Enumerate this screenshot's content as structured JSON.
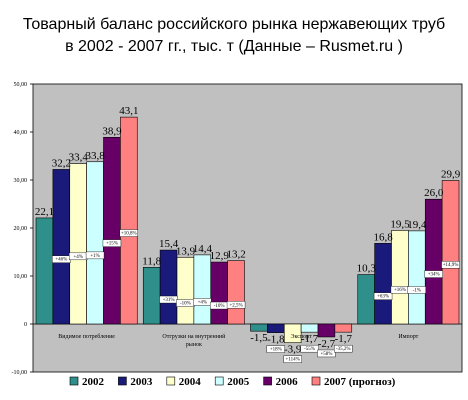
{
  "chart_data": {
    "type": "bar",
    "title_line1": "Товарный баланс российского рынка нержавеющих труб",
    "title_line2": "в 2002 - 2007 гг., тыс. т (Данные – Rusmet.ru )",
    "ylim": [
      -10,
      50
    ],
    "yticks": [
      "-10,00",
      "0",
      "10,00",
      "20,00",
      "30,00",
      "40,00",
      "50,00"
    ],
    "ytick_values": [
      -10,
      0,
      10,
      20,
      30,
      40,
      50
    ],
    "grid": false,
    "legend_position": "bottom",
    "categories": [
      "Видимое потребление",
      "Отгрузки на внутренний рынок",
      "Экспорт",
      "Импорт"
    ],
    "series": [
      {
        "name": "2002",
        "color": "#2f8f8a",
        "values": [
          22.1,
          11.8,
          -1.5,
          10.3
        ],
        "labels": [
          "22,1",
          "11,8",
          "-1,5",
          "10,3"
        ],
        "pct": [
          "",
          "",
          "",
          ""
        ]
      },
      {
        "name": "2003",
        "color": "#1a1a7a",
        "values": [
          32.2,
          15.4,
          -1.8,
          16.8
        ],
        "labels": [
          "32,2",
          "15,4",
          "-1,8",
          "16,8"
        ],
        "pct": [
          "+46%",
          "+31%",
          "+18%",
          "+63%"
        ]
      },
      {
        "name": "2004",
        "color": "#ffffcc",
        "values": [
          33.4,
          13.9,
          -3.9,
          19.5
        ],
        "labels": [
          "33,4",
          "13,9",
          "-3,9",
          "19,5"
        ],
        "pct": [
          "+4%",
          "-10%",
          "+114%",
          "+16%"
        ]
      },
      {
        "name": "2005",
        "color": "#ccffff",
        "values": [
          33.8,
          14.4,
          -1.7,
          19.4
        ],
        "labels": [
          "33,8",
          "14,4",
          "-1,7",
          "19,4"
        ],
        "pct": [
          "+1%",
          "+4%",
          "-55%",
          "-1%"
        ]
      },
      {
        "name": "2006",
        "color": "#660066",
        "values": [
          38.9,
          12.9,
          -2.7,
          26.0
        ],
        "labels": [
          "38,9",
          "12,9",
          "-2,7",
          "26,0"
        ],
        "pct": [
          "+15%",
          "-10%",
          "+58%",
          "+34%"
        ]
      },
      {
        "name": "2007 (прогноз)",
        "color": "#ff8080",
        "values": [
          43.1,
          13.2,
          -1.7,
          29.9
        ],
        "labels": [
          "43,1",
          "13,2",
          "-1,7",
          "29,9"
        ],
        "pct": [
          "+10,8%",
          "+2,5%",
          "-35,2%",
          "+14,9%"
        ]
      }
    ]
  }
}
